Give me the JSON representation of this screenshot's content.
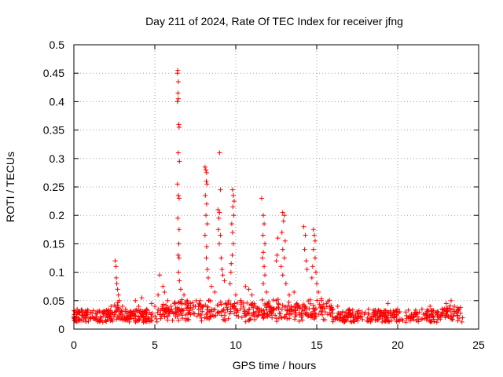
{
  "chart_data": {
    "type": "scatter",
    "title": "Day 211 of 2024, Rate Of TEC Index for receiver jfng",
    "xlabel": "GPS time / hours",
    "ylabel": "ROTI / TECUs",
    "xlim": [
      0,
      25
    ],
    "ylim": [
      0,
      0.5
    ],
    "grid": true,
    "x_ticks": [
      "0",
      "5",
      "10",
      "15",
      "20",
      "25"
    ],
    "y_ticks": [
      "0",
      "0.05",
      "0.1",
      "0.15",
      "0.2",
      "0.25",
      "0.3",
      "0.35",
      "0.4",
      "0.45",
      "0.5"
    ],
    "x_tick_values": [
      0,
      5,
      10,
      15,
      20,
      25
    ],
    "y_tick_values": [
      0,
      0.05,
      0.1,
      0.15,
      0.2,
      0.25,
      0.3,
      0.35,
      0.4,
      0.45,
      0.5
    ],
    "marker": "+",
    "color": "#ff0000",
    "series": [
      {
        "name": "ROTI",
        "points": [
          [
            0.0,
            0.02
          ],
          [
            0.2,
            0.035
          ],
          [
            0.3,
            0.015
          ],
          [
            0.5,
            0.025
          ],
          [
            0.8,
            0.03
          ],
          [
            1.0,
            0.02
          ],
          [
            1.3,
            0.018
          ],
          [
            1.6,
            0.03
          ],
          [
            2.0,
            0.025
          ],
          [
            2.3,
            0.04
          ],
          [
            2.55,
            0.12
          ],
          [
            2.6,
            0.11
          ],
          [
            2.62,
            0.09
          ],
          [
            2.65,
            0.08
          ],
          [
            2.7,
            0.07
          ],
          [
            2.75,
            0.06
          ],
          [
            2.8,
            0.05
          ],
          [
            3.0,
            0.04
          ],
          [
            3.2,
            0.035
          ],
          [
            3.5,
            0.03
          ],
          [
            3.8,
            0.05
          ],
          [
            4.0,
            0.04
          ],
          [
            4.2,
            0.055
          ],
          [
            4.5,
            0.035
          ],
          [
            4.8,
            0.045
          ],
          [
            5.0,
            0.04
          ],
          [
            5.2,
            0.06
          ],
          [
            5.3,
            0.095
          ],
          [
            5.5,
            0.075
          ],
          [
            5.6,
            0.065
          ],
          [
            5.8,
            0.05
          ],
          [
            6.0,
            0.04
          ],
          [
            6.2,
            0.045
          ],
          [
            6.4,
            0.45
          ],
          [
            6.42,
            0.455
          ],
          [
            6.45,
            0.435
          ],
          [
            6.43,
            0.415
          ],
          [
            6.4,
            0.4
          ],
          [
            6.45,
            0.405
          ],
          [
            6.48,
            0.36
          ],
          [
            6.5,
            0.355
          ],
          [
            6.45,
            0.31
          ],
          [
            6.52,
            0.295
          ],
          [
            6.4,
            0.255
          ],
          [
            6.45,
            0.235
          ],
          [
            6.5,
            0.23
          ],
          [
            6.42,
            0.195
          ],
          [
            6.5,
            0.175
          ],
          [
            6.48,
            0.15
          ],
          [
            6.44,
            0.13
          ],
          [
            6.5,
            0.125
          ],
          [
            6.46,
            0.1
          ],
          [
            6.52,
            0.085
          ],
          [
            6.6,
            0.07
          ],
          [
            6.8,
            0.06
          ],
          [
            7.0,
            0.05
          ],
          [
            7.2,
            0.045
          ],
          [
            7.5,
            0.04
          ],
          [
            7.8,
            0.05
          ],
          [
            8.1,
            0.285
          ],
          [
            8.15,
            0.28
          ],
          [
            8.2,
            0.275
          ],
          [
            8.18,
            0.26
          ],
          [
            8.22,
            0.255
          ],
          [
            8.12,
            0.235
          ],
          [
            8.2,
            0.22
          ],
          [
            8.16,
            0.2
          ],
          [
            8.24,
            0.185
          ],
          [
            8.1,
            0.165
          ],
          [
            8.2,
            0.145
          ],
          [
            8.18,
            0.125
          ],
          [
            8.25,
            0.105
          ],
          [
            8.3,
            0.09
          ],
          [
            8.5,
            0.075
          ],
          [
            8.7,
            0.065
          ],
          [
            8.9,
            0.21
          ],
          [
            8.95,
            0.195
          ],
          [
            9.0,
            0.205
          ],
          [
            8.92,
            0.175
          ],
          [
            9.05,
            0.165
          ],
          [
            8.98,
            0.15
          ],
          [
            9.0,
            0.31
          ],
          [
            9.05,
            0.245
          ],
          [
            9.1,
            0.125
          ],
          [
            9.15,
            0.105
          ],
          [
            9.2,
            0.095
          ],
          [
            9.3,
            0.085
          ],
          [
            9.8,
            0.245
          ],
          [
            9.85,
            0.235
          ],
          [
            9.9,
            0.225
          ],
          [
            9.82,
            0.215
          ],
          [
            9.88,
            0.2
          ],
          [
            9.75,
            0.185
          ],
          [
            9.8,
            0.17
          ],
          [
            9.85,
            0.15
          ],
          [
            9.78,
            0.13
          ],
          [
            9.72,
            0.115
          ],
          [
            9.7,
            0.1
          ],
          [
            9.65,
            0.08
          ],
          [
            10.0,
            0.06
          ],
          [
            10.3,
            0.05
          ],
          [
            10.6,
            0.075
          ],
          [
            10.8,
            0.07
          ],
          [
            11.0,
            0.06
          ],
          [
            11.2,
            0.04
          ],
          [
            11.6,
            0.23
          ],
          [
            11.7,
            0.2
          ],
          [
            11.75,
            0.185
          ],
          [
            11.68,
            0.165
          ],
          [
            11.8,
            0.15
          ],
          [
            11.7,
            0.135
          ],
          [
            11.65,
            0.125
          ],
          [
            11.75,
            0.11
          ],
          [
            11.8,
            0.095
          ],
          [
            11.7,
            0.08
          ],
          [
            11.9,
            0.065
          ],
          [
            12.2,
            0.03
          ],
          [
            12.5,
            0.05
          ],
          [
            12.9,
            0.205
          ],
          [
            13.0,
            0.2
          ],
          [
            12.95,
            0.19
          ],
          [
            12.85,
            0.17
          ],
          [
            13.05,
            0.155
          ],
          [
            12.9,
            0.14
          ],
          [
            13.0,
            0.125
          ],
          [
            12.8,
            0.11
          ],
          [
            12.9,
            0.095
          ],
          [
            13.1,
            0.08
          ],
          [
            12.6,
            0.16
          ],
          [
            12.55,
            0.13
          ],
          [
            12.5,
            0.12
          ],
          [
            13.3,
            0.06
          ],
          [
            13.6,
            0.065
          ],
          [
            14.2,
            0.18
          ],
          [
            14.3,
            0.165
          ],
          [
            14.25,
            0.14
          ],
          [
            14.35,
            0.12
          ],
          [
            14.4,
            0.105
          ],
          [
            14.8,
            0.175
          ],
          [
            14.85,
            0.165
          ],
          [
            14.9,
            0.155
          ],
          [
            14.8,
            0.14
          ],
          [
            14.9,
            0.125
          ],
          [
            14.75,
            0.11
          ],
          [
            14.95,
            0.1
          ],
          [
            14.7,
            0.09
          ],
          [
            15.0,
            0.08
          ],
          [
            15.1,
            0.065
          ],
          [
            15.3,
            0.05
          ],
          [
            15.6,
            0.045
          ],
          [
            16.0,
            0.035
          ],
          [
            16.3,
            0.04
          ],
          [
            16.6,
            0.03
          ],
          [
            17.0,
            0.035
          ],
          [
            17.4,
            0.025
          ],
          [
            17.8,
            0.03
          ],
          [
            18.2,
            0.035
          ],
          [
            18.6,
            0.025
          ],
          [
            19.0,
            0.03
          ],
          [
            19.4,
            0.045
          ],
          [
            19.8,
            0.02
          ],
          [
            20.0,
            0.035
          ],
          [
            20.5,
            0.03
          ],
          [
            21.0,
            0.025
          ],
          [
            21.5,
            0.035
          ],
          [
            22.0,
            0.04
          ],
          [
            22.5,
            0.03
          ],
          [
            23.0,
            0.045
          ],
          [
            23.3,
            0.05
          ],
          [
            23.5,
            0.04
          ],
          [
            23.8,
            0.035
          ],
          [
            24.0,
            0.02
          ]
        ]
      }
    ]
  }
}
